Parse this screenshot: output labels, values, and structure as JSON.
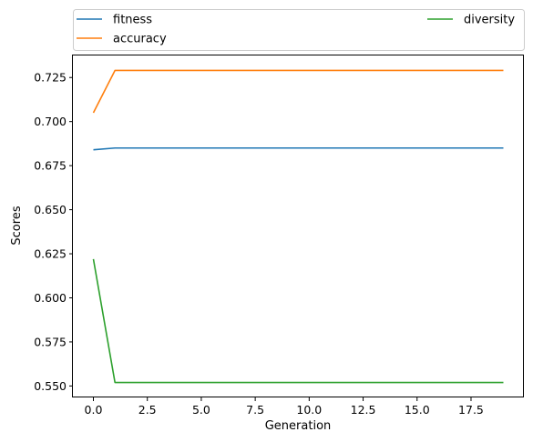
{
  "chart_data": {
    "type": "line",
    "title": "",
    "xlabel": "Generation",
    "ylabel": "Scores",
    "xlim": [
      -0.95,
      19.95
    ],
    "ylim": [
      0.5435,
      0.7375
    ],
    "xticks": [
      0,
      2.5,
      5,
      7.5,
      10,
      12.5,
      15,
      17.5
    ],
    "xtick_labels": [
      "0.0",
      "2.5",
      "5.0",
      "7.5",
      "10.0",
      "12.5",
      "15.0",
      "17.5"
    ],
    "yticks": [
      0.55,
      0.575,
      0.6,
      0.625,
      0.65,
      0.675,
      0.7,
      0.725
    ],
    "ytick_labels": [
      "0.550",
      "0.575",
      "0.600",
      "0.625",
      "0.650",
      "0.675",
      "0.700",
      "0.725"
    ],
    "grid": false,
    "legend_position": "above-plot",
    "x": [
      0,
      1,
      2,
      3,
      4,
      5,
      6,
      7,
      8,
      9,
      10,
      11,
      12,
      13,
      14,
      15,
      16,
      17,
      18,
      19
    ],
    "series": [
      {
        "name": "fitness",
        "color": "#1f77b4",
        "values": [
          0.684,
          0.685,
          0.685,
          0.685,
          0.685,
          0.685,
          0.685,
          0.685,
          0.685,
          0.685,
          0.685,
          0.685,
          0.685,
          0.685,
          0.685,
          0.685,
          0.685,
          0.685,
          0.685,
          0.685
        ]
      },
      {
        "name": "accuracy",
        "color": "#ff7f0e",
        "values": [
          0.705,
          0.729,
          0.729,
          0.729,
          0.729,
          0.729,
          0.729,
          0.729,
          0.729,
          0.729,
          0.729,
          0.729,
          0.729,
          0.729,
          0.729,
          0.729,
          0.729,
          0.729,
          0.729,
          0.729
        ]
      },
      {
        "name": "diversity",
        "color": "#2ca02c",
        "values": [
          0.622,
          0.552,
          0.552,
          0.552,
          0.552,
          0.552,
          0.552,
          0.552,
          0.552,
          0.552,
          0.552,
          0.552,
          0.552,
          0.552,
          0.552,
          0.552,
          0.552,
          0.552,
          0.552,
          0.552
        ]
      }
    ]
  }
}
